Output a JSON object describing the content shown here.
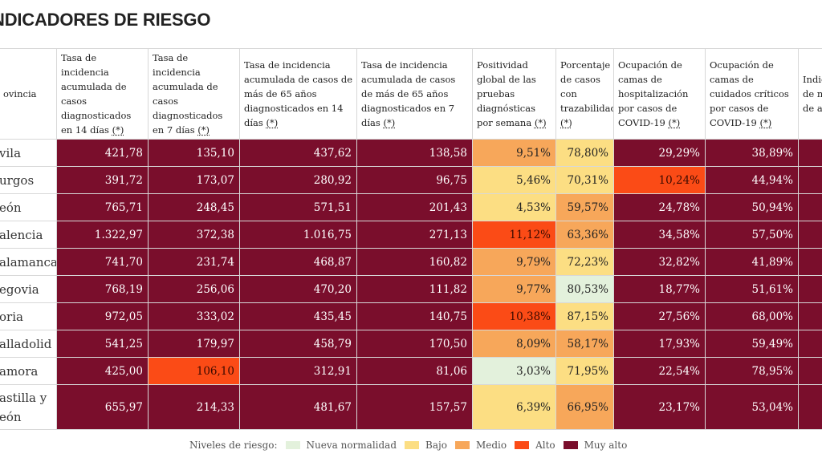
{
  "title": "NDICADORES DE RIESGO",
  "headers": [
    {
      "text": "ovincia",
      "ast": ""
    },
    {
      "text": "Tasa de incidencia acumulada de casos diagnosticados en 14 días ",
      "ast": "(*)"
    },
    {
      "text": "Tasa de incidencia acumulada de casos diagnosticados en 7 días ",
      "ast": "(*)"
    },
    {
      "text": "Tasa de incidencia acumulada de casos de más de 65 años diagnosticados en 14 días ",
      "ast": "(*)"
    },
    {
      "text": "Tasa de incidencia acumulada de casos de más de 65 años diagnosticados en 7 días ",
      "ast": "(*)"
    },
    {
      "text": "Positividad global de las pruebas diagnósticas por semana ",
      "ast": "(*)"
    },
    {
      "text": "Porcentaje de casos con trazabilidad ",
      "ast": "(*)"
    },
    {
      "text": "Ocupación de camas de hospitalización por casos de COVID-19 ",
      "ast": "(*)"
    },
    {
      "text": "Ocupación de camas de cuidados críticos por casos de COVID-19 ",
      "ast": "(*)"
    },
    {
      "text": "Indic de ni de al",
      "ast": ""
    }
  ],
  "rows": [
    {
      "province": "vila",
      "values": [
        "421,78",
        "135,10",
        "437,62",
        "138,58",
        "9,51%",
        "78,80%",
        "29,29%",
        "38,89%",
        ""
      ]
    },
    {
      "province": "urgos",
      "values": [
        "391,72",
        "173,07",
        "280,92",
        "96,75",
        "5,46%",
        "70,31%",
        "10,24%",
        "44,94%",
        ""
      ]
    },
    {
      "province": "eón",
      "values": [
        "765,71",
        "248,45",
        "571,51",
        "201,43",
        "4,53%",
        "59,57%",
        "24,78%",
        "50,94%",
        ""
      ]
    },
    {
      "province": "alencia",
      "values": [
        "1.322,97",
        "372,38",
        "1.016,75",
        "271,13",
        "11,12%",
        "63,36%",
        "34,58%",
        "57,50%",
        ""
      ]
    },
    {
      "province": "alamanca",
      "values": [
        "741,70",
        "231,74",
        "468,87",
        "160,82",
        "9,79%",
        "72,23%",
        "32,82%",
        "41,89%",
        ""
      ]
    },
    {
      "province": "egovia",
      "values": [
        "768,19",
        "256,06",
        "470,20",
        "111,82",
        "9,77%",
        "80,53%",
        "18,77%",
        "51,61%",
        ""
      ]
    },
    {
      "province": "oria",
      "values": [
        "972,05",
        "333,02",
        "435,45",
        "140,75",
        "10,38%",
        "87,15%",
        "27,56%",
        "68,00%",
        ""
      ]
    },
    {
      "province": "alladolid",
      "values": [
        "541,25",
        "179,97",
        "458,79",
        "170,50",
        "8,09%",
        "58,17%",
        "17,93%",
        "59,49%",
        ""
      ]
    },
    {
      "province": "amora",
      "values": [
        "425,00",
        "106,10",
        "312,91",
        "81,06",
        "3,03%",
        "71,95%",
        "22,54%",
        "78,95%",
        ""
      ]
    },
    {
      "province": "astilla y eón",
      "values": [
        "655,97",
        "214,33",
        "481,67",
        "157,57",
        "6,39%",
        "66,95%",
        "23,17%",
        "53,04%",
        ""
      ]
    }
  ],
  "levels": [
    [
      "ma",
      "ma",
      "ma",
      "ma",
      "m",
      "b",
      "ma",
      "ma",
      "ma"
    ],
    [
      "ma",
      "ma",
      "ma",
      "ma",
      "b",
      "b",
      "a",
      "ma",
      "ma"
    ],
    [
      "ma",
      "ma",
      "ma",
      "ma",
      "b",
      "m",
      "ma",
      "ma",
      "ma"
    ],
    [
      "ma",
      "ma",
      "ma",
      "ma",
      "a",
      "m",
      "ma",
      "ma",
      "ma"
    ],
    [
      "ma",
      "ma",
      "ma",
      "ma",
      "m",
      "b",
      "ma",
      "ma",
      "ma"
    ],
    [
      "ma",
      "ma",
      "ma",
      "ma",
      "m",
      "n",
      "ma",
      "ma",
      "ma"
    ],
    [
      "ma",
      "ma",
      "ma",
      "ma",
      "a",
      "b",
      "ma",
      "ma",
      "ma"
    ],
    [
      "ma",
      "ma",
      "ma",
      "ma",
      "m",
      "m",
      "ma",
      "ma",
      "ma"
    ],
    [
      "ma",
      "a",
      "ma",
      "ma",
      "n",
      "b",
      "ma",
      "ma",
      "ma"
    ],
    [
      "ma",
      "ma",
      "ma",
      "ma",
      "b",
      "m",
      "ma",
      "ma",
      "ma"
    ]
  ],
  "legend": {
    "label": "Niveles de riesgo:",
    "items": [
      {
        "label": "Nueva normalidad",
        "color": "#e3f1dc"
      },
      {
        "label": "Bajo",
        "color": "#fcde83"
      },
      {
        "label": "Medio",
        "color": "#f7a75a"
      },
      {
        "label": "Alto",
        "color": "#fb4b16"
      },
      {
        "label": "Muy alto",
        "color": "#7a0e2c"
      }
    ]
  },
  "colors": {
    "muy_alto": "#7a0e2c",
    "alto": "#fb4b16",
    "medio": "#f7a75a",
    "bajo": "#fcde83",
    "nueva_normalidad": "#e3f1dc"
  }
}
